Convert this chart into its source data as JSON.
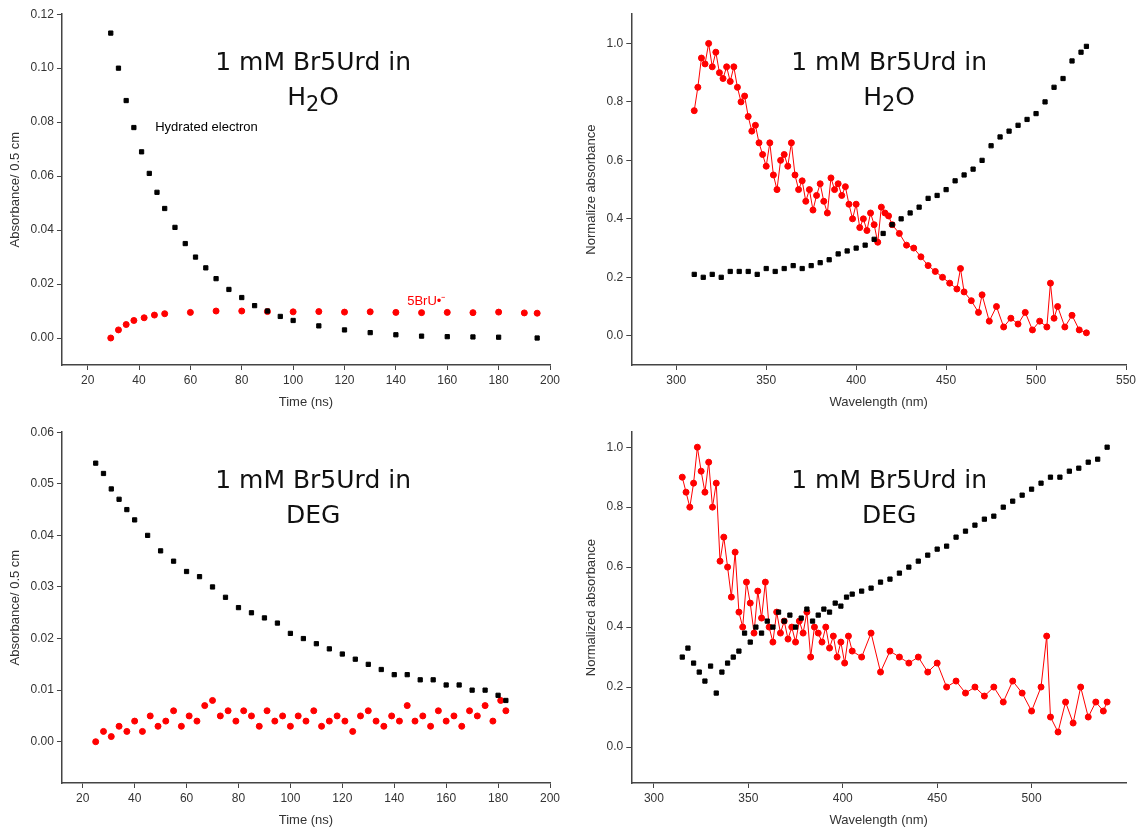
{
  "chart_data": [
    {
      "type": "scatter",
      "title": "1 mM Br5Urd in H$_{2}$O",
      "xlabel": "Time (ns)",
      "ylabel": "Absorbance/ 0.5 cm",
      "xlim": [
        10,
        200
      ],
      "ylim": [
        -0.01,
        0.12
      ],
      "xticks": [
        20,
        40,
        60,
        80,
        100,
        120,
        140,
        160,
        180,
        200
      ],
      "yticks": [
        {
          "value": 0,
          "label": "0.00"
        },
        {
          "value": 0.02,
          "label": "0.02"
        },
        {
          "value": 0.04,
          "label": "0.04"
        },
        {
          "value": 0.06,
          "label": "0.06"
        },
        {
          "value": 0.08,
          "label": "0.08"
        },
        {
          "value": 0.1,
          "label": "0.10"
        },
        {
          "value": 0.12,
          "label": "0.12"
        }
      ],
      "grid": false,
      "legend": false,
      "marker": "circle",
      "series": [
        {
          "name": "Hydrated electron",
          "color": "#000000",
          "marker": "square",
          "x": [
            29,
            32,
            35,
            38,
            41,
            44,
            47,
            50,
            54,
            58,
            62,
            66,
            70,
            75,
            80,
            85,
            90,
            95,
            100,
            110,
            120,
            130,
            140,
            150,
            160,
            170,
            180,
            195
          ],
          "values": [
            0.113,
            0.1,
            0.088,
            0.078,
            0.069,
            0.061,
            0.054,
            0.048,
            0.041,
            0.035,
            0.03,
            0.026,
            0.022,
            0.018,
            0.015,
            0.012,
            0.01,
            0.008,
            0.0065,
            0.0045,
            0.003,
            0.002,
            0.0012,
            0.0007,
            0.0005,
            0.0004,
            0.0003,
            0
          ]
        },
        {
          "name": "5BrU•⁻",
          "color": "#ff0000",
          "x": [
            29,
            32,
            35,
            38,
            42,
            46,
            50,
            60,
            70,
            80,
            90,
            100,
            110,
            120,
            130,
            140,
            150,
            160,
            170,
            180,
            190,
            195
          ],
          "values": [
            0,
            0.003,
            0.005,
            0.0065,
            0.0075,
            0.0085,
            0.009,
            0.0095,
            0.01,
            0.01,
            0.0098,
            0.0097,
            0.0098,
            0.0096,
            0.0097,
            0.0095,
            0.0094,
            0.0095,
            0.0094,
            0.0096,
            0.0093,
            0.0092
          ]
        }
      ]
    },
    {
      "type": "scatter",
      "title": "1 mM Br5Urd in H$_{2}$O",
      "xlabel": "Wavelength (nm)",
      "ylabel": "Normalize absorbance",
      "xlim": [
        275,
        550
      ],
      "ylim": [
        -0.1,
        1.1
      ],
      "xticks": [
        300,
        350,
        400,
        450,
        500,
        550
      ],
      "yticks": [
        {
          "value": 0,
          "label": "0.0"
        },
        {
          "value": 0.2,
          "label": "0.2"
        },
        {
          "value": 0.4,
          "label": "0.4"
        },
        {
          "value": 0.6,
          "label": "0.6"
        },
        {
          "value": 0.8,
          "label": "0.8"
        },
        {
          "value": 1,
          "label": "1.0"
        }
      ],
      "grid": false,
      "legend": false,
      "marker": "circle",
      "series": [
        {
          "color": "#000000",
          "marker": "square",
          "x": [
            310,
            315,
            320,
            325,
            330,
            335,
            340,
            345,
            350,
            355,
            360,
            365,
            370,
            375,
            380,
            385,
            390,
            395,
            400,
            405,
            410,
            415,
            420,
            425,
            430,
            435,
            440,
            445,
            450,
            455,
            460,
            465,
            470,
            475,
            480,
            485,
            490,
            495,
            500,
            505,
            510,
            515,
            520,
            525,
            528
          ],
          "values": [
            0.21,
            0.2,
            0.21,
            0.2,
            0.22,
            0.22,
            0.22,
            0.21,
            0.23,
            0.22,
            0.23,
            0.24,
            0.23,
            0.24,
            0.25,
            0.26,
            0.28,
            0.29,
            0.3,
            0.31,
            0.33,
            0.35,
            0.38,
            0.4,
            0.42,
            0.44,
            0.47,
            0.48,
            0.5,
            0.53,
            0.55,
            0.57,
            0.6,
            0.65,
            0.68,
            0.7,
            0.72,
            0.74,
            0.76,
            0.8,
            0.85,
            0.88,
            0.94,
            0.97,
            0.99
          ]
        },
        {
          "type": "line",
          "color": "#ff0000",
          "x": [
            310,
            312,
            314,
            316,
            318,
            320,
            322,
            324,
            326,
            328,
            330,
            332,
            334,
            336,
            338,
            340,
            342,
            344,
            346,
            348,
            350,
            352,
            354,
            356,
            358,
            360,
            362,
            364,
            366,
            368,
            370,
            372,
            374,
            376,
            378,
            380,
            382,
            384,
            386,
            388,
            390,
            392,
            394,
            396,
            398,
            400,
            402,
            404,
            406,
            408,
            410,
            412,
            414,
            416,
            418,
            420,
            424,
            428,
            432,
            436,
            440,
            444,
            448,
            452,
            456,
            458,
            460,
            464,
            468,
            470,
            474,
            478,
            482,
            486,
            490,
            494,
            498,
            502,
            506,
            508,
            510,
            512,
            516,
            520,
            524,
            528
          ],
          "values": [
            0.77,
            0.85,
            0.95,
            0.93,
            1.0,
            0.92,
            0.97,
            0.9,
            0.88,
            0.92,
            0.87,
            0.92,
            0.85,
            0.8,
            0.82,
            0.75,
            0.7,
            0.72,
            0.66,
            0.62,
            0.58,
            0.66,
            0.55,
            0.5,
            0.6,
            0.62,
            0.58,
            0.66,
            0.55,
            0.5,
            0.53,
            0.46,
            0.5,
            0.43,
            0.48,
            0.52,
            0.46,
            0.42,
            0.54,
            0.5,
            0.52,
            0.48,
            0.51,
            0.45,
            0.4,
            0.45,
            0.37,
            0.4,
            0.36,
            0.42,
            0.38,
            0.32,
            0.44,
            0.42,
            0.41,
            0.38,
            0.35,
            0.31,
            0.3,
            0.27,
            0.24,
            0.22,
            0.2,
            0.18,
            0.16,
            0.23,
            0.15,
            0.12,
            0.08,
            0.14,
            0.05,
            0.1,
            0.03,
            0.06,
            0.04,
            0.08,
            0.02,
            0.05,
            0.03,
            0.18,
            0.06,
            0.1,
            0.03,
            0.07,
            0.02,
            0.01
          ]
        }
      ]
    },
    {
      "type": "scatter",
      "title": "1 mM Br5Urd in DEG",
      "xlabel": "Time (ns)",
      "ylabel": "Absorbance/ 0.5 cm",
      "xlim": [
        12,
        200
      ],
      "ylim": [
        -0.008,
        0.06
      ],
      "xticks": [
        20,
        40,
        60,
        80,
        100,
        120,
        140,
        160,
        180,
        200
      ],
      "yticks": [
        {
          "value": 0,
          "label": "0.00"
        },
        {
          "value": 0.01,
          "label": "0.01"
        },
        {
          "value": 0.02,
          "label": "0.02"
        },
        {
          "value": 0.03,
          "label": "0.03"
        },
        {
          "value": 0.04,
          "label": "0.04"
        },
        {
          "value": 0.05,
          "label": "0.05"
        },
        {
          "value": 0.06,
          "label": "0.06"
        }
      ],
      "grid": false,
      "legend": false,
      "marker": "circle",
      "series": [
        {
          "color": "#000000",
          "marker": "square",
          "x": [
            25,
            28,
            31,
            34,
            37,
            40,
            45,
            50,
            55,
            60,
            65,
            70,
            75,
            80,
            85,
            90,
            95,
            100,
            105,
            110,
            115,
            120,
            125,
            130,
            135,
            140,
            145,
            150,
            155,
            160,
            165,
            170,
            175,
            180,
            183
          ],
          "values": [
            0.054,
            0.052,
            0.049,
            0.047,
            0.045,
            0.043,
            0.04,
            0.037,
            0.035,
            0.033,
            0.032,
            0.03,
            0.028,
            0.026,
            0.025,
            0.024,
            0.023,
            0.021,
            0.02,
            0.019,
            0.018,
            0.017,
            0.016,
            0.015,
            0.014,
            0.013,
            0.013,
            0.012,
            0.012,
            0.011,
            0.011,
            0.01,
            0.01,
            0.009,
            0.008
          ]
        },
        {
          "color": "#ff0000",
          "x": [
            25,
            28,
            31,
            34,
            37,
            40,
            43,
            46,
            49,
            52,
            55,
            58,
            61,
            64,
            67,
            70,
            73,
            76,
            79,
            82,
            85,
            88,
            91,
            94,
            97,
            100,
            103,
            106,
            109,
            112,
            115,
            118,
            121,
            124,
            127,
            130,
            133,
            136,
            139,
            142,
            145,
            148,
            151,
            154,
            157,
            160,
            163,
            166,
            169,
            172,
            175,
            178,
            181,
            183
          ],
          "values": [
            0,
            0.002,
            0.001,
            0.003,
            0.002,
            0.004,
            0.002,
            0.005,
            0.003,
            0.004,
            0.006,
            0.003,
            0.005,
            0.004,
            0.007,
            0.008,
            0.005,
            0.006,
            0.004,
            0.006,
            0.005,
            0.003,
            0.006,
            0.004,
            0.005,
            0.003,
            0.005,
            0.004,
            0.006,
            0.003,
            0.004,
            0.005,
            0.004,
            0.002,
            0.005,
            0.006,
            0.004,
            0.003,
            0.005,
            0.004,
            0.007,
            0.004,
            0.005,
            0.003,
            0.006,
            0.004,
            0.005,
            0.003,
            0.006,
            0.005,
            0.007,
            0.004,
            0.008,
            0.006
          ]
        }
      ]
    },
    {
      "type": "scatter",
      "title": "1 mM Br5Urd in DEG",
      "xlabel": "Wavelength (nm)",
      "ylabel": "Normalized absorbance",
      "xlim": [
        288,
        550
      ],
      "ylim": [
        -0.12,
        1.05
      ],
      "xticks": [
        300,
        350,
        400,
        450,
        500
      ],
      "yticks": [
        {
          "value": 0,
          "label": "0.0"
        },
        {
          "value": 0.2,
          "label": "0.2"
        },
        {
          "value": 0.4,
          "label": "0.4"
        },
        {
          "value": 0.6,
          "label": "0.6"
        },
        {
          "value": 0.8,
          "label": "0.8"
        },
        {
          "value": 1,
          "label": "1.0"
        }
      ],
      "grid": false,
      "legend": false,
      "marker": "circle",
      "series": [
        {
          "color": "#000000",
          "marker": "square",
          "x": [
            315,
            318,
            321,
            324,
            327,
            330,
            333,
            336,
            339,
            342,
            345,
            348,
            351,
            354,
            357,
            360,
            363,
            366,
            369,
            372,
            375,
            378,
            381,
            384,
            387,
            390,
            393,
            396,
            399,
            402,
            405,
            410,
            415,
            420,
            425,
            430,
            435,
            440,
            445,
            450,
            455,
            460,
            465,
            470,
            475,
            480,
            485,
            490,
            495,
            500,
            505,
            510,
            515,
            520,
            525,
            530,
            535,
            540
          ],
          "values": [
            0.3,
            0.33,
            0.28,
            0.25,
            0.22,
            0.27,
            0.18,
            0.25,
            0.28,
            0.3,
            0.32,
            0.38,
            0.35,
            0.4,
            0.38,
            0.42,
            0.4,
            0.45,
            0.42,
            0.44,
            0.4,
            0.43,
            0.46,
            0.42,
            0.44,
            0.46,
            0.45,
            0.48,
            0.47,
            0.5,
            0.51,
            0.52,
            0.53,
            0.55,
            0.56,
            0.58,
            0.6,
            0.62,
            0.64,
            0.66,
            0.67,
            0.7,
            0.72,
            0.74,
            0.76,
            0.77,
            0.8,
            0.82,
            0.84,
            0.86,
            0.88,
            0.9,
            0.9,
            0.92,
            0.93,
            0.95,
            0.96,
            1.0
          ]
        },
        {
          "type": "line",
          "color": "#ff0000",
          "x": [
            315,
            317,
            319,
            321,
            323,
            325,
            327,
            329,
            331,
            333,
            335,
            337,
            339,
            341,
            343,
            345,
            347,
            349,
            351,
            353,
            355,
            357,
            359,
            361,
            363,
            365,
            367,
            369,
            371,
            373,
            375,
            377,
            379,
            381,
            383,
            385,
            387,
            389,
            391,
            393,
            395,
            397,
            399,
            401,
            403,
            405,
            410,
            415,
            420,
            425,
            430,
            435,
            440,
            445,
            450,
            455,
            460,
            465,
            470,
            475,
            480,
            485,
            490,
            495,
            500,
            505,
            508,
            510,
            514,
            518,
            522,
            526,
            530,
            534,
            538,
            540
          ],
          "values": [
            0.9,
            0.85,
            0.8,
            0.88,
            1.0,
            0.92,
            0.85,
            0.95,
            0.8,
            0.88,
            0.62,
            0.7,
            0.6,
            0.5,
            0.65,
            0.45,
            0.4,
            0.55,
            0.48,
            0.38,
            0.52,
            0.43,
            0.55,
            0.4,
            0.35,
            0.45,
            0.38,
            0.42,
            0.36,
            0.4,
            0.35,
            0.42,
            0.38,
            0.45,
            0.3,
            0.4,
            0.38,
            0.35,
            0.4,
            0.33,
            0.37,
            0.3,
            0.35,
            0.28,
            0.37,
            0.32,
            0.3,
            0.38,
            0.25,
            0.32,
            0.3,
            0.28,
            0.3,
            0.25,
            0.28,
            0.2,
            0.22,
            0.18,
            0.2,
            0.17,
            0.2,
            0.15,
            0.22,
            0.18,
            0.12,
            0.2,
            0.37,
            0.1,
            0.05,
            0.15,
            0.08,
            0.2,
            0.1,
            0.15,
            0.12,
            0.15
          ]
        }
      ]
    }
  ]
}
